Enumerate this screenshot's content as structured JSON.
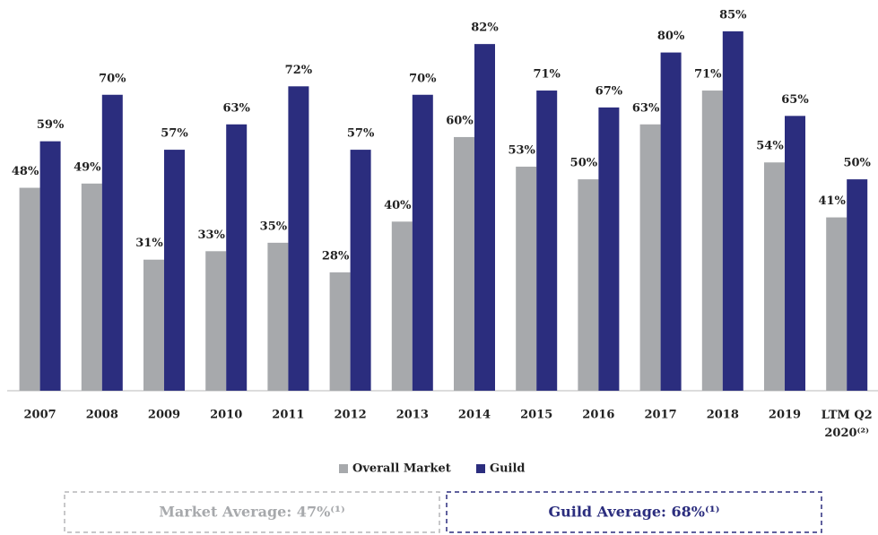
{
  "chart_data": {
    "type": "bar",
    "categories": [
      "2007",
      "2008",
      "2009",
      "2010",
      "2011",
      "2012",
      "2013",
      "2014",
      "2015",
      "2016",
      "2017",
      "2018",
      "2019",
      "LTM Q2 2020⁽²⁾"
    ],
    "series": [
      {
        "name": "Overall Market",
        "color": "#a7a9ac",
        "values": [
          48,
          49,
          31,
          33,
          35,
          28,
          40,
          60,
          53,
          50,
          63,
          71,
          54,
          41
        ],
        "value_labels": [
          "48%",
          "49%",
          "31%",
          "33%",
          "35%",
          "28%",
          "40%",
          "60%",
          "53%",
          "50%",
          "63%",
          "71%",
          "54%",
          "41%"
        ]
      },
      {
        "name": "Guild",
        "color": "#2b2d7e",
        "values": [
          59,
          70,
          57,
          63,
          72,
          57,
          70,
          82,
          71,
          67,
          80,
          85,
          65,
          50
        ],
        "value_labels": [
          "59%",
          "70%",
          "57%",
          "63%",
          "72%",
          "57%",
          "70%",
          "82%",
          "71%",
          "67%",
          "80%",
          "85%",
          "65%",
          "50%"
        ]
      }
    ],
    "ylim": [
      0,
      90
    ],
    "legend": "bottom",
    "annotations": [
      "Market Average: 47%⁽¹⁾",
      "Guild Average: 68%⁽¹⁾"
    ]
  }
}
